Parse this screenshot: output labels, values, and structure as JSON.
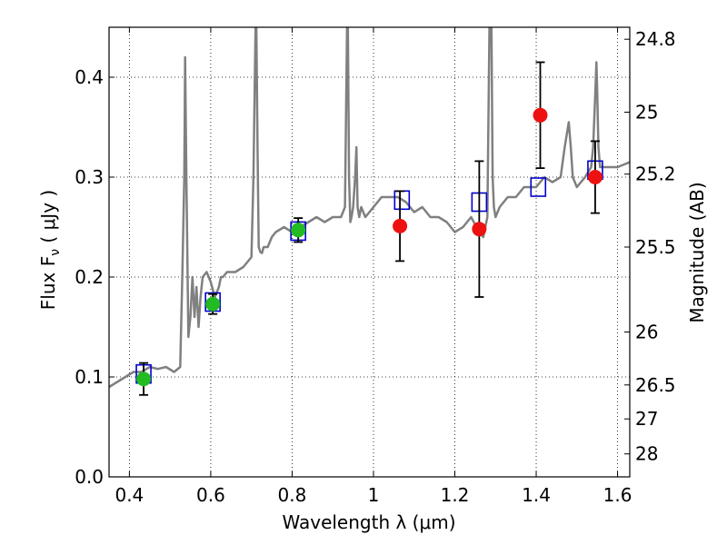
{
  "chart_data": {
    "type": "scatter",
    "title": "",
    "xlabel": "Wavelength  λ (μm)",
    "ylabel": "Flux  F",
    "ylabel_sub": "ν",
    "ylabel_unit": "  ( μJy )",
    "y2label": "Magnitude (AB)",
    "xlim": [
      0.35,
      1.63
    ],
    "ylim": [
      0.0,
      0.45
    ],
    "grid": true,
    "x_ticks": [
      0.4,
      0.6,
      0.8,
      1.0,
      1.2,
      1.4,
      1.6
    ],
    "x_tick_labels": [
      "0.4",
      "0.6",
      "0.8",
      "1",
      "1.2",
      "1.4",
      "1.6"
    ],
    "y_ticks": [
      0.0,
      0.1,
      0.2,
      0.3,
      0.4
    ],
    "y_tick_labels": [
      "0.0",
      "0.1",
      "0.2",
      "0.3",
      "0.4"
    ],
    "y2_ticks": [
      {
        "label": "24.8",
        "flux": 0.438
      },
      {
        "label": "25",
        "flux": 0.365
      },
      {
        "label": "25.2",
        "flux": 0.303
      },
      {
        "label": "25.5",
        "flux": 0.23
      },
      {
        "label": "26",
        "flux": 0.145
      },
      {
        "label": "26.5",
        "flux": 0.092
      },
      {
        "label": "27",
        "flux": 0.058
      },
      {
        "label": "28",
        "flux": 0.023
      }
    ],
    "colors": {
      "spectrum": "#808080",
      "model_box": "#0000cc",
      "green_points": "#22bb22",
      "red_points": "#ee1111",
      "errorbar": "#000000"
    },
    "series": [
      {
        "kind": "line",
        "x": [
          0.35,
          0.37,
          0.39,
          0.41,
          0.43,
          0.45,
          0.47,
          0.49,
          0.51,
          0.525,
          0.53,
          0.535,
          0.537,
          0.54,
          0.545,
          0.55,
          0.555,
          0.56,
          0.565,
          0.57,
          0.575,
          0.58,
          0.59,
          0.6,
          0.61,
          0.62,
          0.625,
          0.63,
          0.64,
          0.66,
          0.68,
          0.7,
          0.705,
          0.71,
          0.712,
          0.715,
          0.718,
          0.722,
          0.726,
          0.73,
          0.74,
          0.75,
          0.76,
          0.78,
          0.8,
          0.82,
          0.84,
          0.86,
          0.88,
          0.9,
          0.92,
          0.93,
          0.935,
          0.937,
          0.94,
          0.943,
          0.946,
          0.95,
          0.955,
          0.958,
          0.961,
          0.965,
          0.97,
          0.98,
          1.0,
          1.02,
          1.04,
          1.06,
          1.08,
          1.1,
          1.12,
          1.14,
          1.16,
          1.18,
          1.2,
          1.22,
          1.24,
          1.26,
          1.27,
          1.28,
          1.285,
          1.29,
          1.293,
          1.296,
          1.3,
          1.31,
          1.33,
          1.35,
          1.37,
          1.4,
          1.42,
          1.44,
          1.46,
          1.47,
          1.48,
          1.485,
          1.49,
          1.5,
          1.52,
          1.535,
          1.54,
          1.545,
          1.548,
          1.55,
          1.553,
          1.557,
          1.56,
          1.58,
          1.6,
          1.63
        ],
        "y": [
          0.09,
          0.095,
          0.1,
          0.105,
          0.105,
          0.11,
          0.108,
          0.11,
          0.105,
          0.11,
          0.2,
          0.3,
          0.42,
          0.3,
          0.14,
          0.16,
          0.2,
          0.16,
          0.19,
          0.15,
          0.18,
          0.2,
          0.205,
          0.195,
          0.18,
          0.19,
          0.2,
          0.2,
          0.205,
          0.205,
          0.21,
          0.22,
          0.3,
          0.45,
          0.45,
          0.33,
          0.23,
          0.225,
          0.224,
          0.23,
          0.23,
          0.24,
          0.245,
          0.25,
          0.245,
          0.25,
          0.255,
          0.26,
          0.255,
          0.26,
          0.26,
          0.27,
          0.45,
          0.45,
          0.3,
          0.255,
          0.26,
          0.27,
          0.3,
          0.33,
          0.27,
          0.26,
          0.27,
          0.26,
          0.27,
          0.28,
          0.28,
          0.28,
          0.275,
          0.265,
          0.27,
          0.26,
          0.26,
          0.255,
          0.245,
          0.25,
          0.26,
          0.245,
          0.24,
          0.26,
          0.45,
          0.45,
          0.3,
          0.27,
          0.26,
          0.27,
          0.28,
          0.28,
          0.29,
          0.29,
          0.3,
          0.295,
          0.3,
          0.33,
          0.355,
          0.33,
          0.3,
          0.29,
          0.3,
          0.31,
          0.33,
          0.38,
          0.415,
          0.385,
          0.33,
          0.31,
          0.31,
          0.31,
          0.31,
          0.315
        ]
      },
      {
        "kind": "model_boxes",
        "x": [
          0.435,
          0.605,
          0.815,
          1.07,
          1.26,
          1.405,
          1.545
        ],
        "y": [
          0.103,
          0.175,
          0.246,
          0.277,
          0.275,
          0.29,
          0.307
        ]
      },
      {
        "kind": "points_with_errors",
        "color_key": "green_points",
        "x": [
          0.435,
          0.605,
          0.815
        ],
        "y": [
          0.098,
          0.173,
          0.247
        ],
        "err": [
          0.016,
          0.01,
          0.012
        ]
      },
      {
        "kind": "points_with_errors",
        "color_key": "red_points",
        "x": [
          1.065,
          1.26,
          1.41,
          1.545
        ],
        "y": [
          0.251,
          0.248,
          0.362,
          0.3
        ],
        "err": [
          0.035,
          0.068,
          0.053,
          0.036
        ]
      }
    ]
  }
}
